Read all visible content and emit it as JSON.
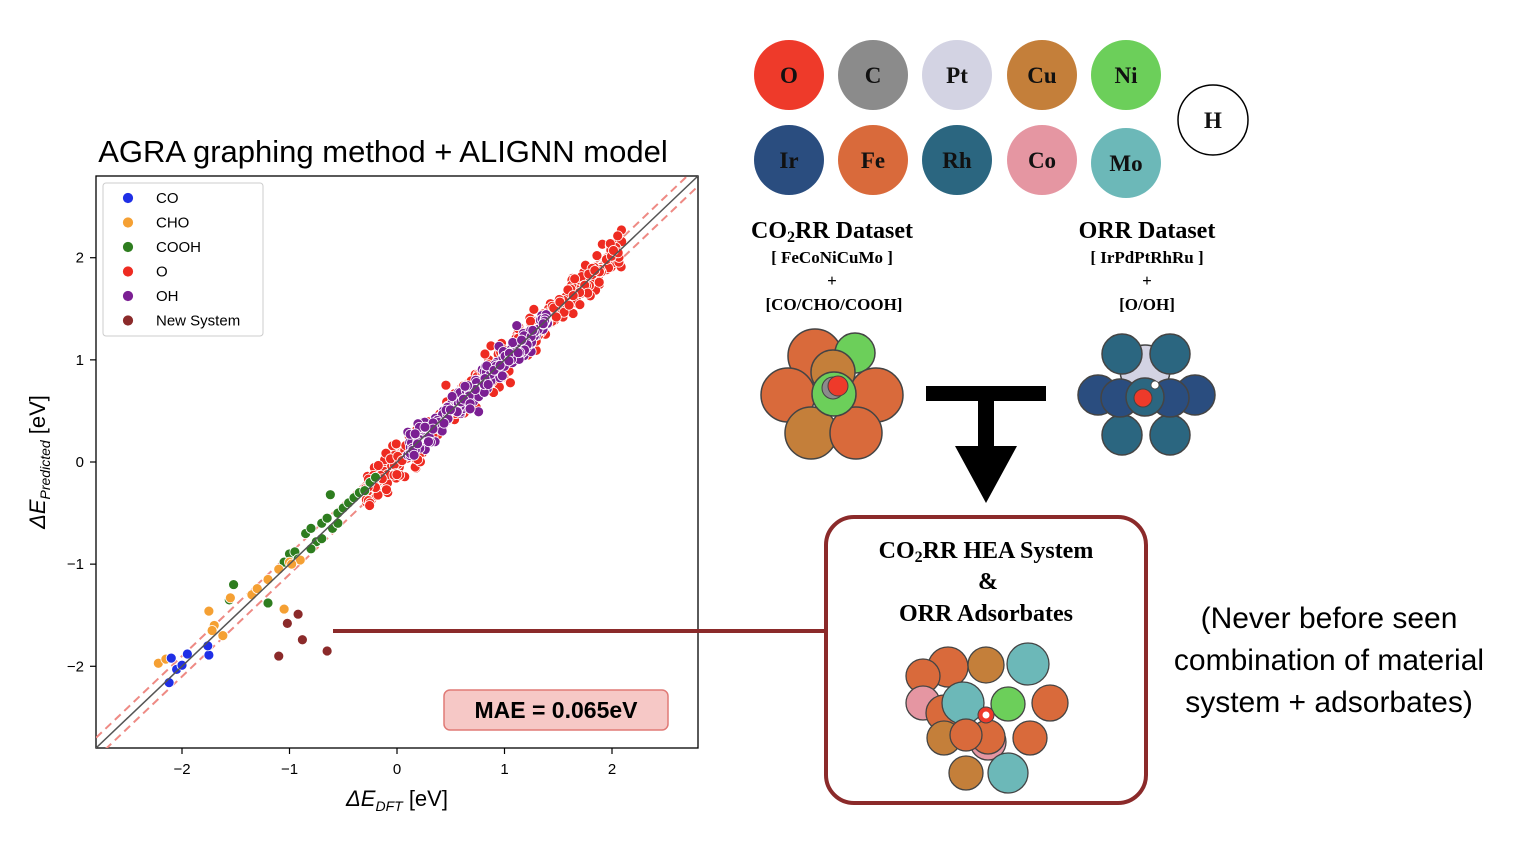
{
  "chart_data": {
    "type": "scatter",
    "title": "AGRA graphing method + ALIGNN model",
    "xlabel_main": "ΔE",
    "xlabel_sub": "DFT",
    "xlabel_unit": " [eV]",
    "ylabel_main": "ΔE",
    "ylabel_sub": "Predicted",
    "ylabel_unit": " [eV]",
    "xlim": [
      -2.8,
      2.8
    ],
    "ylim": [
      -2.8,
      2.8
    ],
    "xticks": [
      -2,
      -1,
      0,
      1,
      2
    ],
    "yticks": [
      -2,
      -1,
      0,
      1,
      2
    ],
    "xtick_labels": [
      "−2",
      "−1",
      "0",
      "1",
      "2"
    ],
    "ytick_labels": [
      "−2",
      "−1",
      "0",
      "1",
      "2"
    ],
    "parity_line": true,
    "error_band": 0.1,
    "legend_position": "top-left",
    "mae_label": "MAE = 0.065eV",
    "series": [
      {
        "name": "CO",
        "color": "#1f2fe6",
        "points": [
          [
            -2.12,
            -2.16
          ],
          [
            -2.1,
            -1.92
          ],
          [
            -2.05,
            -2.03
          ],
          [
            -1.95,
            -1.88
          ],
          [
            -1.75,
            -1.89
          ],
          [
            -1.76,
            -1.8
          ],
          [
            -2.0,
            -1.99
          ]
        ]
      },
      {
        "name": "CHO",
        "color": "#f5a033",
        "points": [
          [
            -2.22,
            -1.97
          ],
          [
            -2.15,
            -1.93
          ],
          [
            -1.75,
            -1.46
          ],
          [
            -1.7,
            -1.6
          ],
          [
            -1.72,
            -1.65
          ],
          [
            -1.62,
            -1.7
          ],
          [
            -1.55,
            -1.33
          ],
          [
            -1.35,
            -1.3
          ],
          [
            -1.3,
            -1.24
          ],
          [
            -1.2,
            -1.15
          ],
          [
            -1.1,
            -1.05
          ],
          [
            -1.05,
            -1.44
          ],
          [
            -1.0,
            -0.98
          ],
          [
            -0.9,
            -0.96
          ],
          [
            -0.98,
            -1.0
          ]
        ]
      },
      {
        "name": "COOH",
        "color": "#2e7d1f",
        "points": [
          [
            -1.52,
            -1.2
          ],
          [
            -1.56,
            -1.35
          ],
          [
            -1.2,
            -1.38
          ],
          [
            -1.05,
            -0.98
          ],
          [
            -1.0,
            -0.9
          ],
          [
            -0.95,
            -0.88
          ],
          [
            -0.92,
            -0.95
          ],
          [
            -0.85,
            -0.7
          ],
          [
            -0.8,
            -0.65
          ],
          [
            -0.75,
            -0.78
          ],
          [
            -0.7,
            -0.6
          ],
          [
            -0.65,
            -0.55
          ],
          [
            -0.62,
            -0.32
          ],
          [
            -0.6,
            -0.65
          ],
          [
            -0.55,
            -0.5
          ],
          [
            -0.5,
            -0.45
          ],
          [
            -0.45,
            -0.4
          ],
          [
            -0.4,
            -0.35
          ],
          [
            -0.35,
            -0.3
          ],
          [
            -0.3,
            -0.28
          ],
          [
            -0.25,
            -0.2
          ],
          [
            -0.2,
            -0.15
          ],
          [
            -0.8,
            -0.85
          ],
          [
            -0.7,
            -0.75
          ],
          [
            -0.55,
            -0.6
          ]
        ]
      },
      {
        "name": "O",
        "color": "#ee2b21",
        "points": []
      },
      {
        "name": "OH",
        "color": "#7b1f93",
        "points": []
      },
      {
        "name": "New System",
        "color": "#8b2a2a",
        "points": [
          [
            -1.1,
            -1.9
          ],
          [
            -1.02,
            -1.58
          ],
          [
            -0.92,
            -1.49
          ],
          [
            -0.88,
            -1.74
          ],
          [
            -0.65,
            -1.85
          ]
        ]
      }
    ],
    "generated_series": [
      {
        "name": "O",
        "x_range": [
          -0.3,
          2.1
        ],
        "count": 420,
        "spread": 0.09,
        "seed": 7
      },
      {
        "name": "OH",
        "x_range": [
          0.1,
          1.4
        ],
        "count": 260,
        "spread": 0.07,
        "seed": 11
      }
    ]
  },
  "elements_panel": {
    "atoms": [
      {
        "symbol": "O",
        "color": "#ee3a2a"
      },
      {
        "symbol": "C",
        "color": "#8b8b8b"
      },
      {
        "symbol": "Pt",
        "color": "#d3d3e3"
      },
      {
        "symbol": "Cu",
        "color": "#c47f3a"
      },
      {
        "symbol": "Ni",
        "color": "#6ccf5a"
      },
      {
        "symbol": "H",
        "color": "#ffffff"
      },
      {
        "symbol": "Ir",
        "color": "#2a4d7f"
      },
      {
        "symbol": "Fe",
        "color": "#d96a3b"
      },
      {
        "symbol": "Rh",
        "color": "#2b6680"
      },
      {
        "symbol": "Co",
        "color": "#e596a2"
      },
      {
        "symbol": "Mo",
        "color": "#6cb8b8"
      }
    ]
  },
  "datasets": {
    "co2rr": {
      "title_a": "CO",
      "title_sub": "2",
      "title_b": "RR Dataset",
      "line1": "[ FeCoNiCuMo ]",
      "plus": "+",
      "line2": "[CO/CHO/COOH]"
    },
    "orr": {
      "title": "ORR Dataset",
      "line1": "[ IrPdPtRhRu ]",
      "plus": "+",
      "line2": "[O/OH]"
    }
  },
  "hea_box": {
    "line1_a": "CO",
    "line1_sub": "2",
    "line1_b": "RR HEA System",
    "line2": "&",
    "line3": "ORR Adsorbates",
    "border_color": "#8b2a2a"
  },
  "note": {
    "line1": "(Never before seen",
    "line2": "combination of material",
    "line3": "system + adsorbates)"
  }
}
